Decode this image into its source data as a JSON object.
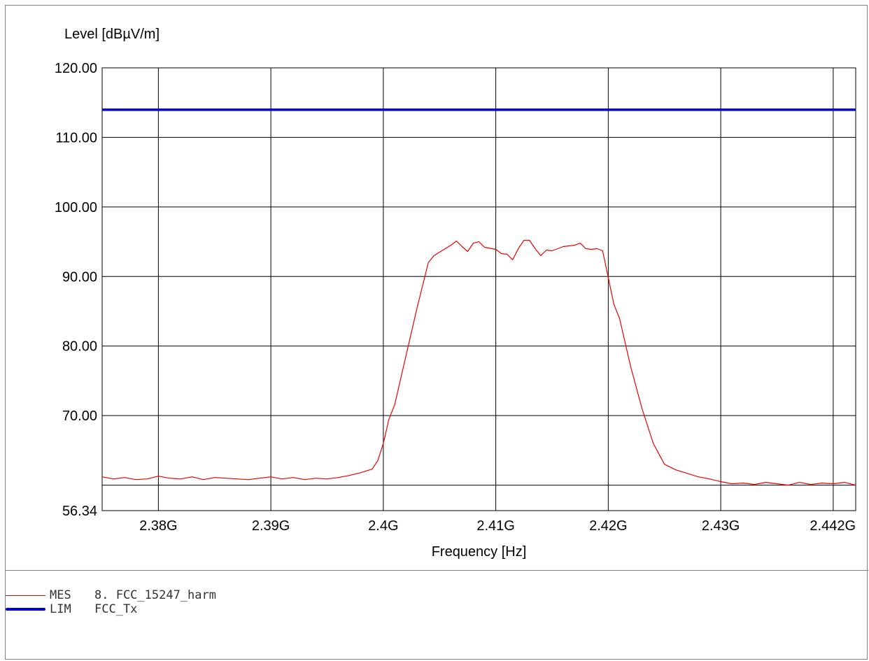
{
  "chart_data": {
    "type": "line",
    "ylabel": "Level [dBµV/m]",
    "xlabel": "Frequency [Hz]",
    "xlim": [
      2.375,
      2.442
    ],
    "ylim": [
      56.34,
      120.0
    ],
    "x_ticks": [
      {
        "value": 2.38,
        "label": "2.38G"
      },
      {
        "value": 2.39,
        "label": "2.39G"
      },
      {
        "value": 2.4,
        "label": "2.4G"
      },
      {
        "value": 2.41,
        "label": "2.41G"
      },
      {
        "value": 2.42,
        "label": "2.42G"
      },
      {
        "value": 2.43,
        "label": "2.43G"
      },
      {
        "value": 2.442,
        "label": "2.442G"
      }
    ],
    "x_grid": [
      2.38,
      2.39,
      2.4,
      2.41,
      2.42,
      2.43,
      2.44
    ],
    "y_ticks": [
      {
        "value": 120.0,
        "label": "120.00"
      },
      {
        "value": 110.0,
        "label": "110.00"
      },
      {
        "value": 100.0,
        "label": "100.00"
      },
      {
        "value": 90.0,
        "label": "90.00"
      },
      {
        "value": 80.0,
        "label": "80.00"
      },
      {
        "value": 70.0,
        "label": "70.00"
      },
      {
        "value": 56.34,
        "label": "56.34"
      }
    ],
    "y_grid": [
      120,
      110,
      100,
      90,
      80,
      70,
      60
    ],
    "grid": true,
    "series": [
      {
        "name": "MES",
        "color": "#ee0000",
        "x": [
          2.375,
          2.376,
          2.377,
          2.378,
          2.379,
          2.38,
          2.381,
          2.382,
          2.383,
          2.384,
          2.385,
          2.386,
          2.387,
          2.388,
          2.389,
          2.39,
          2.391,
          2.392,
          2.393,
          2.394,
          2.395,
          2.396,
          2.397,
          2.398,
          2.399,
          2.3995,
          2.4,
          2.4005,
          2.401,
          2.402,
          2.403,
          2.404,
          2.4045,
          2.405,
          2.406,
          2.4065,
          2.407,
          2.4075,
          2.408,
          2.4085,
          2.409,
          2.41,
          2.4105,
          2.411,
          2.4115,
          2.412,
          2.4125,
          2.413,
          2.4135,
          2.414,
          2.4145,
          2.415,
          2.416,
          2.417,
          2.4175,
          2.418,
          2.4185,
          2.419,
          2.4195,
          2.4205,
          2.421,
          2.422,
          2.423,
          2.424,
          2.425,
          2.426,
          2.427,
          2.428,
          2.429,
          2.43,
          2.431,
          2.432,
          2.433,
          2.434,
          2.435,
          2.436,
          2.437,
          2.438,
          2.439,
          2.44,
          2.441,
          2.442
        ],
        "y": [
          61.2,
          60.9,
          61.1,
          60.8,
          60.9,
          61.3,
          61.0,
          60.9,
          61.2,
          60.8,
          61.1,
          61.0,
          60.9,
          60.8,
          61.0,
          61.2,
          60.9,
          61.1,
          60.8,
          61.0,
          60.9,
          61.1,
          61.4,
          61.8,
          62.3,
          63.5,
          66.0,
          69.5,
          71.5,
          78.5,
          85.5,
          92.0,
          93.0,
          93.5,
          94.5,
          95.1,
          94.3,
          93.6,
          94.8,
          95.0,
          94.2,
          93.9,
          93.3,
          93.2,
          92.4,
          94.0,
          95.2,
          95.2,
          94.0,
          93.0,
          93.8,
          93.7,
          94.3,
          94.5,
          94.8,
          94.0,
          93.9,
          94.0,
          93.7,
          86.0,
          84.0,
          77.0,
          71.0,
          66.0,
          63.0,
          62.2,
          61.7,
          61.2,
          60.9,
          60.5,
          60.2,
          60.3,
          60.1,
          60.4,
          60.2,
          60.0,
          60.4,
          60.1,
          60.3,
          60.2,
          60.4,
          60.0
        ]
      },
      {
        "name": "LIM",
        "color": "#0000dd",
        "x": [
          2.375,
          2.442
        ],
        "y": [
          113.98,
          113.98
        ]
      }
    ]
  },
  "legend": {
    "items": [
      {
        "label": "MES",
        "text": "8. FCC_15247_harm",
        "color": "#ee0000"
      },
      {
        "label": "LIM",
        "text": "FCC_Tx",
        "color": "#0000dd"
      }
    ]
  }
}
